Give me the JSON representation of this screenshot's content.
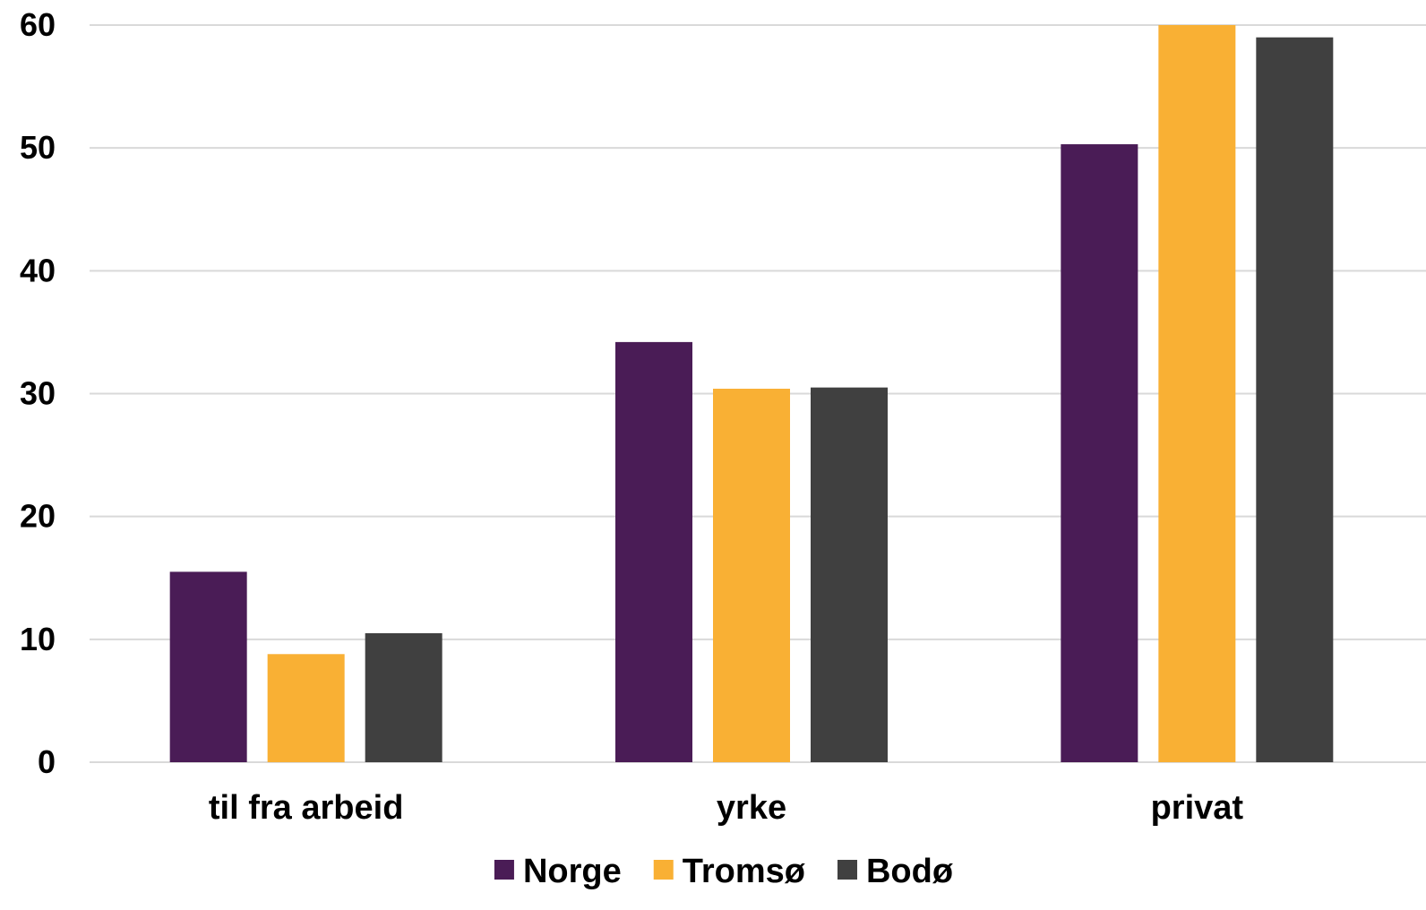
{
  "chart_data": {
    "type": "bar",
    "title": "",
    "xlabel": "",
    "ylabel": "",
    "categories": [
      "til fra arbeid",
      "yrke",
      "privat"
    ],
    "series": [
      {
        "name": "Norge",
        "values": [
          15.5,
          34.2,
          50.3
        ],
        "color": "#4a1c56"
      },
      {
        "name": "Tromsø",
        "values": [
          8.8,
          30.4,
          60.0
        ],
        "color": "#f9b034"
      },
      {
        "name": "Bodø",
        "values": [
          10.5,
          30.5,
          59.0
        ],
        "color": "#404040"
      }
    ],
    "ylim": [
      0,
      60
    ],
    "yticks": [
      0,
      10,
      20,
      30,
      40,
      50,
      60
    ],
    "grid": true,
    "gridline_color": "#d9d9d9",
    "legend_position": "bottom"
  }
}
